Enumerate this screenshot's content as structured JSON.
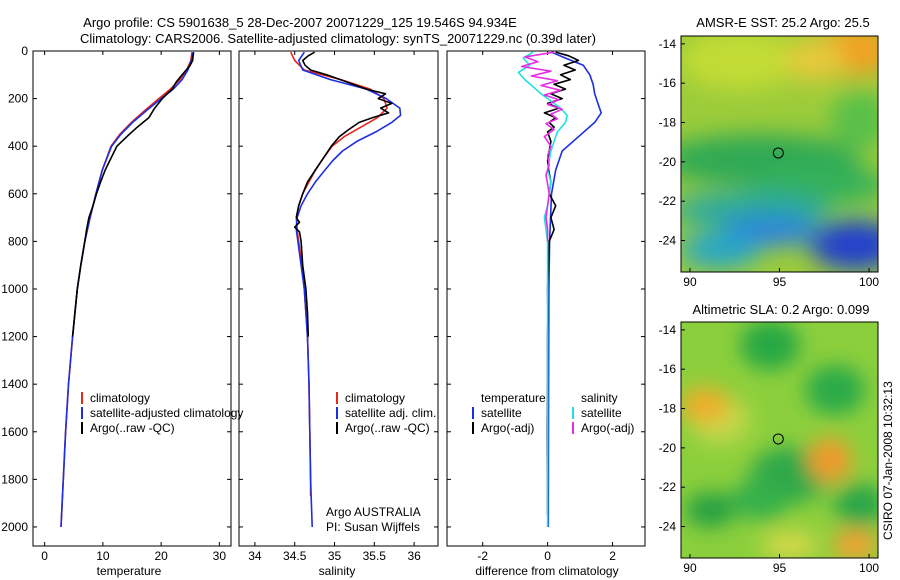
{
  "figure": {
    "title_line1": "Argo profile: CS 5901638_5 28-Dec-2007 20071229_125 19.546S 94.934E",
    "title_line2": "Climatology: CARS2006. Satellite-adjusted climatology: synTS_20071229.nc (0.39d later)",
    "side_label": "CSIRO 07-Jan-2008 10:32:13"
  },
  "chart_data": [
    {
      "id": "temperature_panel",
      "type": "line",
      "xlabel": "temperature",
      "ylabel": "",
      "xlim": [
        -2,
        32
      ],
      "ylim": [
        2080,
        0
      ],
      "xticks": [
        0,
        10,
        20,
        30
      ],
      "yticks": [
        0,
        200,
        400,
        600,
        800,
        1000,
        1200,
        1400,
        1600,
        1800,
        2000
      ],
      "legend": [
        "climatology",
        "satellite-adjusted climatology",
        "Argo(..raw -QC)"
      ],
      "series": [
        {
          "name": "climatology",
          "color": "#e8261d",
          "y": [
            5,
            40,
            80,
            120,
            160,
            200,
            250,
            300,
            350,
            400,
            500,
            600,
            700,
            800,
            900,
            1000,
            1200,
            1400,
            1600,
            1800,
            2000
          ],
          "x": [
            25.3,
            25.1,
            24.4,
            23.2,
            21.6,
            19.6,
            17.2,
            14.9,
            12.9,
            11.4,
            9.9,
            8.8,
            7.8,
            6.9,
            6.2,
            5.6,
            4.8,
            4.1,
            3.6,
            3.2,
            2.8
          ]
        },
        {
          "name": "satellite-adjusted climatology",
          "color": "#1c2fe3",
          "y": [
            5,
            40,
            80,
            120,
            160,
            200,
            250,
            300,
            350,
            400,
            500,
            600,
            700,
            800,
            900,
            1000,
            1200,
            1400,
            1600,
            1800,
            2000
          ],
          "x": [
            25.4,
            25.2,
            24.6,
            23.6,
            22.1,
            20.0,
            17.5,
            15.1,
            13.1,
            11.5,
            9.9,
            8.8,
            7.8,
            6.9,
            6.2,
            5.6,
            4.8,
            4.1,
            3.6,
            3.2,
            2.8
          ]
        },
        {
          "name": "Argo(..raw -QC)",
          "color": "#000000",
          "y": [
            5,
            20,
            40,
            60,
            80,
            100,
            130,
            160,
            200,
            240,
            280,
            320,
            360,
            400,
            450,
            500,
            550,
            600,
            650,
            700,
            750,
            800,
            900,
            1000,
            1100,
            1200
          ],
          "x": [
            25.6,
            25.5,
            25.4,
            25.0,
            24.3,
            23.6,
            22.6,
            21.9,
            20.2,
            18.9,
            17.9,
            15.9,
            14.1,
            12.4,
            11.4,
            10.4,
            9.6,
            8.9,
            8.3,
            7.6,
            7.2,
            6.9,
            6.2,
            5.6,
            5.2,
            4.8
          ]
        }
      ]
    },
    {
      "id": "salinity_panel",
      "type": "line",
      "xlabel": "salinity",
      "ylabel": "",
      "xlim": [
        33.8,
        36.3
      ],
      "ylim": [
        2080,
        0
      ],
      "xticks": [
        34,
        34.5,
        35,
        35.5,
        36
      ],
      "yticks": [
        0,
        200,
        400,
        600,
        800,
        1000,
        1200,
        1400,
        1600,
        1800,
        2000
      ],
      "legend": [
        "climatology",
        "satellite adj. clim.",
        "Argo(..raw -QC)"
      ],
      "annotations": [
        "Argo AUSTRALIA",
        "PI: Susan Wijffels"
      ],
      "series": [
        {
          "name": "climatology",
          "color": "#e8261d",
          "y": [
            5,
            40,
            80,
            120,
            160,
            200,
            240,
            280,
            320,
            360,
            400,
            450,
            500,
            550,
            600,
            650,
            700,
            750,
            800,
            900,
            1000,
            1200,
            1400,
            1600,
            1800,
            1870
          ],
          "x": [
            34.45,
            34.5,
            34.62,
            35.08,
            35.45,
            35.62,
            35.66,
            35.54,
            35.33,
            35.12,
            34.97,
            34.86,
            34.76,
            34.68,
            34.6,
            34.55,
            34.52,
            34.53,
            34.55,
            34.59,
            34.62,
            34.66,
            34.68,
            34.69,
            34.7,
            34.7
          ]
        },
        {
          "name": "satellite adj. clim.",
          "color": "#1c2fe3",
          "y": [
            5,
            40,
            80,
            120,
            160,
            200,
            240,
            270,
            300,
            340,
            380,
            420,
            460,
            500,
            550,
            600,
            650,
            700,
            750,
            800,
            900,
            1000,
            1200,
            1400,
            1600,
            1800,
            2000
          ],
          "x": [
            34.62,
            34.55,
            34.6,
            34.95,
            35.4,
            35.65,
            35.82,
            35.83,
            35.72,
            35.52,
            35.28,
            35.1,
            34.98,
            34.88,
            34.76,
            34.66,
            34.58,
            34.53,
            34.52,
            34.54,
            34.58,
            34.62,
            34.66,
            34.68,
            34.69,
            34.7,
            34.72
          ]
        },
        {
          "name": "Argo(..raw -QC)",
          "color": "#000000",
          "y": [
            5,
            20,
            40,
            60,
            80,
            100,
            130,
            160,
            180,
            200,
            220,
            240,
            260,
            280,
            300,
            330,
            360,
            400,
            450,
            500,
            550,
            600,
            650,
            700,
            720,
            740,
            760,
            800,
            900,
            1000,
            1100,
            1200
          ],
          "x": [
            34.75,
            34.67,
            34.6,
            34.63,
            34.7,
            34.9,
            35.15,
            35.4,
            35.64,
            35.55,
            35.72,
            35.58,
            35.68,
            35.48,
            35.31,
            35.18,
            35.06,
            34.96,
            34.86,
            34.76,
            34.66,
            34.6,
            34.55,
            34.52,
            34.56,
            34.5,
            34.56,
            34.58,
            34.6,
            34.64,
            34.66,
            34.67
          ]
        }
      ]
    },
    {
      "id": "difference_panel",
      "type": "line",
      "xlabel": "difference from climatology",
      "ylabel": "",
      "xlim": [
        -3.1,
        3.0
      ],
      "ylim": [
        2080,
        0
      ],
      "xticks": [
        -2,
        0,
        2
      ],
      "yticks": [
        0,
        200,
        400,
        600,
        800,
        1000,
        1200,
        1400,
        1600,
        1800,
        2000
      ],
      "legend_headers": [
        "temperature",
        "salinity"
      ],
      "legend": [
        "satellite",
        "Argo(-adj)",
        "satellite",
        "Argo(-adj)"
      ],
      "series": [
        {
          "name": "temperature satellite",
          "color": "#1c2fe3",
          "y": [
            5,
            30,
            60,
            100,
            140,
            180,
            220,
            260,
            300,
            360,
            420,
            500,
            600,
            800,
            1000,
            1400,
            2000
          ],
          "x": [
            0.12,
            0.55,
            1.1,
            1.3,
            1.4,
            1.45,
            1.55,
            1.65,
            1.45,
            0.95,
            0.45,
            0.25,
            0.12,
            0.06,
            0.04,
            0.03,
            0.02
          ]
        },
        {
          "name": "temperature Argo(-adj)",
          "color": "#000000",
          "y": [
            5,
            20,
            40,
            60,
            80,
            100,
            120,
            140,
            160,
            180,
            200,
            220,
            240,
            260,
            280,
            300,
            320,
            340,
            380,
            420,
            460,
            500,
            550,
            600,
            650,
            700,
            750,
            800,
            900,
            1000,
            1100,
            1200,
            1400,
            1600,
            1800,
            1950
          ],
          "x": [
            0.25,
            0.65,
            0.95,
            0.5,
            0.85,
            0.4,
            0.7,
            0.2,
            0.55,
            0.1,
            0.45,
            0.0,
            0.35,
            -0.1,
            0.25,
            0.05,
            0.2,
            0.0,
            0.1,
            0.05,
            0.0,
            0.03,
            0.1,
            0.05,
            0.25,
            0.1,
            0.2,
            0.05,
            0.02,
            0.0,
            0.01,
            0.0,
            0.0,
            -0.01,
            0.0,
            0.0
          ]
        },
        {
          "name": "salinity satellite",
          "color": "#20e0e0",
          "y": [
            5,
            30,
            60,
            90,
            120,
            150,
            180,
            210,
            240,
            270,
            300,
            340,
            380,
            420,
            460,
            500,
            550,
            600,
            650,
            700,
            750,
            800,
            900,
            1000,
            1400,
            2000
          ],
          "x": [
            -0.45,
            -0.75,
            -0.55,
            -0.9,
            -0.7,
            -0.45,
            -0.2,
            0.1,
            0.4,
            0.6,
            0.55,
            0.3,
            0.2,
            0.1,
            0.05,
            0.0,
            0.1,
            0.05,
            0.0,
            -0.1,
            -0.05,
            0.0,
            0.0,
            0.0,
            0.0,
            0.0
          ]
        },
        {
          "name": "salinity Argo(-adj)",
          "color": "#e62ee6",
          "y": [
            5,
            25,
            45,
            65,
            85,
            105,
            125,
            145,
            165,
            185,
            205,
            225,
            245,
            265,
            285,
            305,
            330,
            360,
            400,
            440,
            480,
            520,
            560,
            600,
            650,
            700,
            750,
            800
          ],
          "x": [
            0.2,
            -0.7,
            -0.3,
            -0.8,
            0.1,
            -0.5,
            0.3,
            -0.2,
            0.4,
            -0.1,
            0.35,
            0.0,
            0.45,
            0.1,
            0.3,
            -0.05,
            0.2,
            -0.1,
            0.1,
            0.0,
            0.05,
            -0.05,
            0.0,
            0.05,
            0.0,
            -0.05,
            0.0,
            0.0
          ]
        }
      ]
    },
    {
      "id": "sst_map",
      "type": "heatmap",
      "title": "AMSR-E SST: 25.2 Argo: 25.5",
      "xlim": [
        89.5,
        100.5
      ],
      "ylim": [
        -25.6,
        -13.6
      ],
      "xticks": [
        90,
        95,
        100
      ],
      "yticks": [
        -14,
        -16,
        -18,
        -20,
        -22,
        -24
      ],
      "marker": {
        "x": 94.934,
        "y": -19.546,
        "shape": "circle"
      },
      "colors": {
        "low": "#1e3cd2",
        "mid": "#2eb85c",
        "high": "#f5a020"
      }
    },
    {
      "id": "sla_map",
      "type": "heatmap",
      "title": "Altimetric SLA: 0.2 Argo: 0.099",
      "xlim": [
        89.5,
        100.5
      ],
      "ylim": [
        -25.6,
        -13.6
      ],
      "xticks": [
        90,
        95,
        100
      ],
      "yticks": [
        -14,
        -16,
        -18,
        -20,
        -22,
        -24
      ],
      "marker": {
        "x": 94.934,
        "y": -19.546,
        "shape": "circle"
      },
      "colors": {
        "low": "#20b040",
        "mid": "#e8e83c",
        "high": "#f08a20"
      }
    }
  ]
}
